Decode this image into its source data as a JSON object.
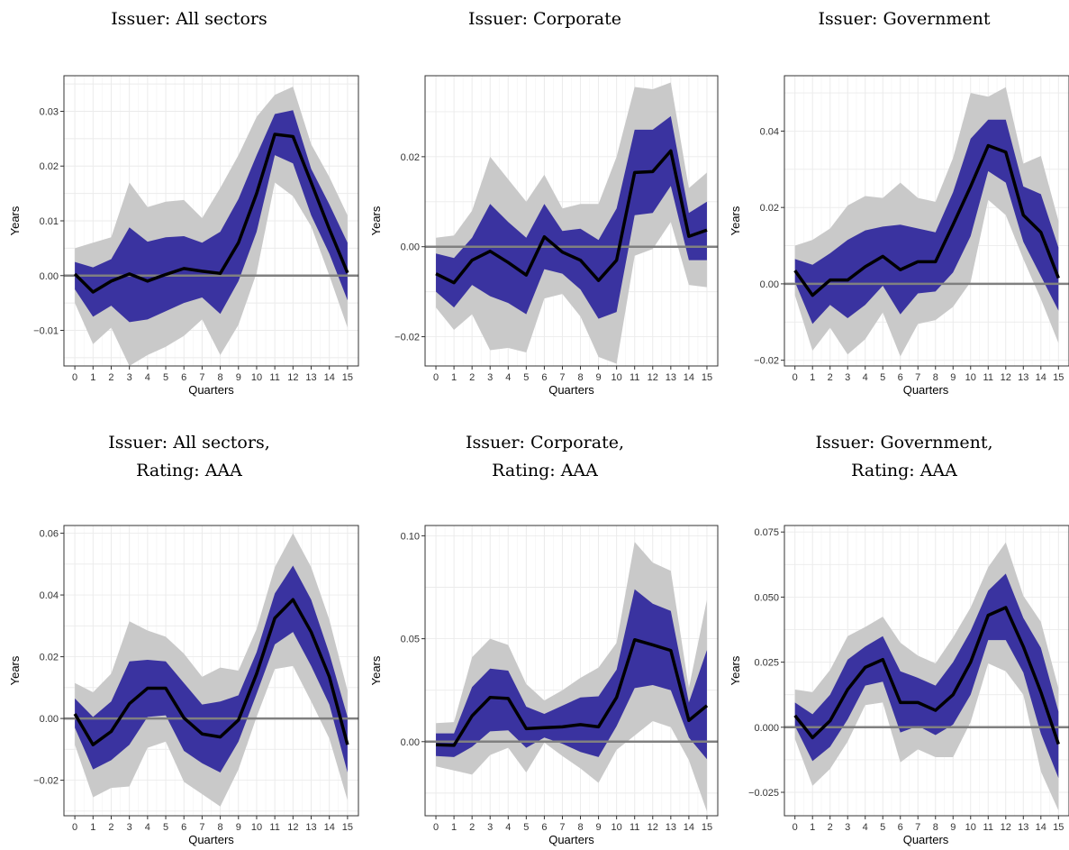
{
  "colors": {
    "outer_band": "#c9c9c9",
    "inner_band": "#3a33a0",
    "line": "#000000",
    "zero_line": "#808080",
    "grid": "#ebebeb"
  },
  "chart_data": [
    {
      "type": "line",
      "title_lines": [
        "Issuer:  All sectors"
      ],
      "xlabel": "Quarters",
      "ylabel": "Years",
      "x": [
        0,
        1,
        2,
        3,
        4,
        5,
        6,
        7,
        8,
        9,
        10,
        11,
        12,
        13,
        14,
        15
      ],
      "ylim": [
        -0.0165,
        0.0365
      ],
      "yticks": [
        -0.01,
        0.0,
        0.01,
        0.02,
        0.03
      ],
      "ytick_labels": [
        "−0.01",
        "0.00",
        "0.01",
        "0.02",
        "0.03"
      ],
      "series": [
        {
          "role": "band90_upper",
          "values": [
            0.005,
            0.006,
            0.007,
            0.017,
            0.0125,
            0.0135,
            0.0138,
            0.0105,
            0.016,
            0.022,
            0.029,
            0.033,
            0.0345,
            0.024,
            0.018,
            0.011
          ]
        },
        {
          "role": "band90_lower",
          "values": [
            -0.005,
            -0.0125,
            -0.0095,
            -0.0165,
            -0.0145,
            -0.013,
            -0.011,
            -0.008,
            -0.0145,
            -0.009,
            0.0005,
            0.017,
            0.0145,
            0.009,
            0.0,
            -0.0095
          ]
        },
        {
          "role": "band68_upper",
          "values": [
            0.0025,
            0.0015,
            0.003,
            0.0088,
            0.0062,
            0.007,
            0.0072,
            0.006,
            0.008,
            0.014,
            0.022,
            0.0295,
            0.0302,
            0.0195,
            0.013,
            0.006
          ]
        },
        {
          "role": "band68_lower",
          "values": [
            -0.0025,
            -0.0075,
            -0.0055,
            -0.0085,
            -0.008,
            -0.0065,
            -0.005,
            -0.004,
            -0.007,
            -0.001,
            0.008,
            0.022,
            0.0205,
            0.011,
            0.004,
            -0.0045
          ]
        },
        {
          "role": "estimate",
          "values": [
            0.0003,
            -0.003,
            -0.001,
            0.0003,
            -0.001,
            0.0002,
            0.0013,
            0.0008,
            0.0004,
            0.006,
            0.015,
            0.0258,
            0.0254,
            0.017,
            0.0085,
            0.0005
          ]
        }
      ]
    },
    {
      "type": "line",
      "title_lines": [
        "Issuer:  Corporate"
      ],
      "xlabel": "Quarters",
      "ylabel": "Years",
      "x": [
        0,
        1,
        2,
        3,
        4,
        5,
        6,
        7,
        8,
        9,
        10,
        11,
        12,
        13,
        14,
        15
      ],
      "ylim": [
        -0.0265,
        0.038
      ],
      "yticks": [
        -0.02,
        0.0,
        0.02
      ],
      "ytick_labels": [
        "−0.02",
        "0.00",
        "0.02"
      ],
      "series": [
        {
          "role": "band90_upper",
          "values": [
            0.002,
            0.0025,
            0.008,
            0.02,
            0.015,
            0.01,
            0.016,
            0.0085,
            0.0095,
            0.0095,
            0.02,
            0.0355,
            0.035,
            0.0365,
            0.013,
            0.0165
          ]
        },
        {
          "role": "band90_lower",
          "values": [
            -0.0135,
            -0.0185,
            -0.015,
            -0.023,
            -0.0225,
            -0.0235,
            -0.0115,
            -0.0105,
            -0.0155,
            -0.0245,
            -0.026,
            -0.002,
            -0.0005,
            0.0055,
            -0.0085,
            -0.009
          ]
        },
        {
          "role": "band68_upper",
          "values": [
            -0.0015,
            -0.0025,
            0.002,
            0.0095,
            0.0055,
            0.002,
            0.0095,
            0.0035,
            0.004,
            0.0015,
            0.0085,
            0.026,
            0.026,
            0.029,
            0.0075,
            0.01
          ]
        },
        {
          "role": "band68_lower",
          "values": [
            -0.01,
            -0.0135,
            -0.0085,
            -0.011,
            -0.0125,
            -0.015,
            -0.005,
            -0.006,
            -0.0095,
            -0.016,
            -0.0145,
            0.007,
            0.0075,
            0.0135,
            -0.003,
            -0.003
          ]
        },
        {
          "role": "estimate",
          "values": [
            -0.006,
            -0.008,
            -0.003,
            -0.001,
            -0.0035,
            -0.0063,
            0.0022,
            -0.0012,
            -0.003,
            -0.0075,
            -0.003,
            0.0165,
            0.0167,
            0.0213,
            0.0023,
            0.0037
          ]
        }
      ]
    },
    {
      "type": "line",
      "title_lines": [
        "Issuer:  Government"
      ],
      "xlabel": "Quarters",
      "ylabel": "Years",
      "x": [
        0,
        1,
        2,
        3,
        4,
        5,
        6,
        7,
        8,
        9,
        10,
        11,
        12,
        13,
        14,
        15
      ],
      "ylim": [
        -0.0215,
        0.0545
      ],
      "yticks": [
        -0.02,
        0.0,
        0.02,
        0.04
      ],
      "ytick_labels": [
        "−0.02",
        "0.00",
        "0.02",
        "0.04"
      ],
      "series": [
        {
          "role": "band90_upper",
          "values": [
            0.01,
            0.0115,
            0.0145,
            0.0205,
            0.023,
            0.0225,
            0.0265,
            0.0225,
            0.0215,
            0.033,
            0.05,
            0.049,
            0.0515,
            0.0315,
            0.0335,
            0.0165
          ]
        },
        {
          "role": "band90_lower",
          "values": [
            -0.003,
            -0.0175,
            -0.0115,
            -0.0185,
            -0.0145,
            -0.0075,
            -0.019,
            -0.0105,
            -0.0095,
            -0.006,
            0.0005,
            0.022,
            0.018,
            0.0065,
            -0.004,
            -0.0155
          ]
        },
        {
          "role": "band68_upper",
          "values": [
            0.0065,
            0.005,
            0.008,
            0.0115,
            0.014,
            0.015,
            0.0155,
            0.0145,
            0.0135,
            0.024,
            0.038,
            0.043,
            0.043,
            0.0255,
            0.0235,
            0.0095
          ]
        },
        {
          "role": "band68_lower",
          "values": [
            0.0005,
            -0.0105,
            -0.0055,
            -0.009,
            -0.0055,
            -0.0005,
            -0.008,
            -0.0025,
            -0.002,
            0.003,
            0.0125,
            0.0295,
            0.0265,
            0.011,
            0.002,
            -0.007
          ]
        },
        {
          "role": "estimate",
          "values": [
            0.0035,
            -0.003,
            0.001,
            0.001,
            0.0045,
            0.0072,
            0.0037,
            0.0058,
            0.0058,
            0.0155,
            0.0255,
            0.0362,
            0.0345,
            0.018,
            0.0135,
            0.0015
          ]
        }
      ]
    },
    {
      "type": "line",
      "title_lines": [
        "Issuer:  All sectors,",
        "Rating:  AAA"
      ],
      "xlabel": "Quarters",
      "ylabel": "Years",
      "x": [
        0,
        1,
        2,
        3,
        4,
        5,
        6,
        7,
        8,
        9,
        10,
        11,
        12,
        13,
        14,
        15
      ],
      "ylim": [
        -0.0315,
        0.0625
      ],
      "yticks": [
        -0.02,
        0.0,
        0.02,
        0.04,
        0.06
      ],
      "ytick_labels": [
        "−0.02",
        "0.00",
        "0.02",
        "0.04",
        "0.06"
      ],
      "series": [
        {
          "role": "band90_upper",
          "values": [
            0.0115,
            0.0085,
            0.0145,
            0.0315,
            0.0285,
            0.0265,
            0.021,
            0.0135,
            0.0165,
            0.0155,
            0.029,
            0.049,
            0.06,
            0.049,
            0.032,
            0.009
          ]
        },
        {
          "role": "band90_lower",
          "values": [
            -0.0085,
            -0.0255,
            -0.0225,
            -0.022,
            -0.0095,
            -0.0075,
            -0.0205,
            -0.0245,
            -0.0285,
            -0.0165,
            0.0005,
            0.016,
            0.017,
            0.0055,
            -0.0065,
            -0.0265
          ]
        },
        {
          "role": "band68_upper",
          "values": [
            0.0065,
            0.0005,
            0.0055,
            0.0185,
            0.019,
            0.0185,
            0.0115,
            0.0045,
            0.0055,
            0.0075,
            0.0215,
            0.0405,
            0.0495,
            0.0385,
            0.021,
            0.0005
          ]
        },
        {
          "role": "band68_lower",
          "values": [
            -0.003,
            -0.0165,
            -0.0135,
            -0.0085,
            0.0005,
            0.001,
            -0.0105,
            -0.0145,
            -0.0175,
            -0.0075,
            0.008,
            0.024,
            0.028,
            0.017,
            0.0045,
            -0.0175
          ]
        },
        {
          "role": "estimate",
          "values": [
            0.0015,
            -0.0085,
            -0.0042,
            0.0048,
            0.0098,
            0.0098,
            0.0002,
            -0.005,
            -0.006,
            -0.0005,
            0.0145,
            0.0325,
            0.0385,
            0.028,
            0.0135,
            -0.0085
          ]
        }
      ]
    },
    {
      "type": "line",
      "title_lines": [
        "Issuer:  Corporate,",
        "Rating:  AAA"
      ],
      "xlabel": "Quarters",
      "ylabel": "Years",
      "x": [
        0,
        1,
        2,
        3,
        4,
        5,
        6,
        7,
        8,
        9,
        10,
        11,
        12,
        13,
        14,
        15
      ],
      "ylim": [
        -0.036,
        0.105
      ],
      "yticks": [
        0.0,
        0.05,
        0.1
      ],
      "ytick_labels": [
        "0.00",
        "0.05",
        "0.10"
      ],
      "series": [
        {
          "role": "band90_upper",
          "values": [
            0.009,
            0.0095,
            0.041,
            0.05,
            0.047,
            0.028,
            0.02,
            0.025,
            0.031,
            0.036,
            0.048,
            0.097,
            0.087,
            0.083,
            0.026,
            0.069
          ]
        },
        {
          "role": "band90_lower",
          "values": [
            -0.012,
            -0.014,
            -0.016,
            -0.0065,
            -0.003,
            -0.015,
            -0.0005,
            -0.007,
            -0.013,
            -0.02,
            -0.004,
            0.003,
            0.01,
            0.007,
            -0.009,
            -0.034
          ]
        },
        {
          "role": "band68_upper",
          "values": [
            0.004,
            0.004,
            0.0265,
            0.0355,
            0.0345,
            0.017,
            0.0135,
            0.0175,
            0.0215,
            0.022,
            0.035,
            0.074,
            0.067,
            0.0635,
            0.019,
            0.0445
          ]
        },
        {
          "role": "band68_lower",
          "values": [
            -0.007,
            -0.0075,
            -0.0025,
            0.005,
            0.0055,
            -0.003,
            0.002,
            -0.001,
            -0.005,
            -0.0075,
            0.0075,
            0.026,
            0.0275,
            0.025,
            0.002,
            -0.0085
          ]
        },
        {
          "role": "estimate",
          "values": [
            -0.0015,
            -0.0018,
            0.0125,
            0.0215,
            0.021,
            0.0063,
            0.0068,
            0.0072,
            0.0083,
            0.0072,
            0.0215,
            0.0495,
            0.047,
            0.0443,
            0.0103,
            0.0175
          ]
        }
      ]
    },
    {
      "type": "line",
      "title_lines": [
        "Issuer:  Government,",
        "Rating:  AAA"
      ],
      "xlabel": "Quarters",
      "ylabel": "Years",
      "x": [
        0,
        1,
        2,
        3,
        4,
        5,
        6,
        7,
        8,
        9,
        10,
        11,
        12,
        13,
        14,
        15
      ],
      "ylim": [
        -0.034,
        0.0775
      ],
      "yticks": [
        -0.025,
        0.0,
        0.025,
        0.05,
        0.075
      ],
      "ytick_labels": [
        "−0.025",
        "0.000",
        "0.025",
        "0.050",
        "0.075"
      ],
      "series": [
        {
          "role": "band90_upper",
          "values": [
            0.0145,
            0.0135,
            0.022,
            0.035,
            0.0385,
            0.0425,
            0.0325,
            0.0275,
            0.0245,
            0.0345,
            0.046,
            0.0615,
            0.071,
            0.0505,
            0.0405,
            0.015
          ]
        },
        {
          "role": "band90_lower",
          "values": [
            -0.0045,
            -0.0225,
            -0.016,
            -0.0055,
            0.0085,
            0.0095,
            -0.0135,
            -0.0085,
            -0.0115,
            -0.0115,
            0.002,
            0.0245,
            0.0215,
            0.0125,
            -0.017,
            -0.032
          ]
        },
        {
          "role": "band68_upper",
          "values": [
            0.0095,
            0.005,
            0.0125,
            0.026,
            0.031,
            0.035,
            0.0215,
            0.019,
            0.016,
            0.025,
            0.037,
            0.0525,
            0.059,
            0.042,
            0.0305,
            0.006
          ]
        },
        {
          "role": "band68_lower",
          "values": [
            0.0005,
            -0.013,
            -0.0075,
            0.003,
            0.016,
            0.0175,
            -0.002,
            0.0005,
            -0.003,
            0.001,
            0.0125,
            0.0335,
            0.0335,
            0.021,
            -0.0025,
            -0.0195
          ]
        },
        {
          "role": "estimate",
          "values": [
            0.0045,
            -0.004,
            0.0025,
            0.0145,
            0.023,
            0.026,
            0.0095,
            0.0095,
            0.0065,
            0.0125,
            0.025,
            0.043,
            0.046,
            0.031,
            0.0135,
            -0.0065
          ]
        }
      ]
    }
  ]
}
